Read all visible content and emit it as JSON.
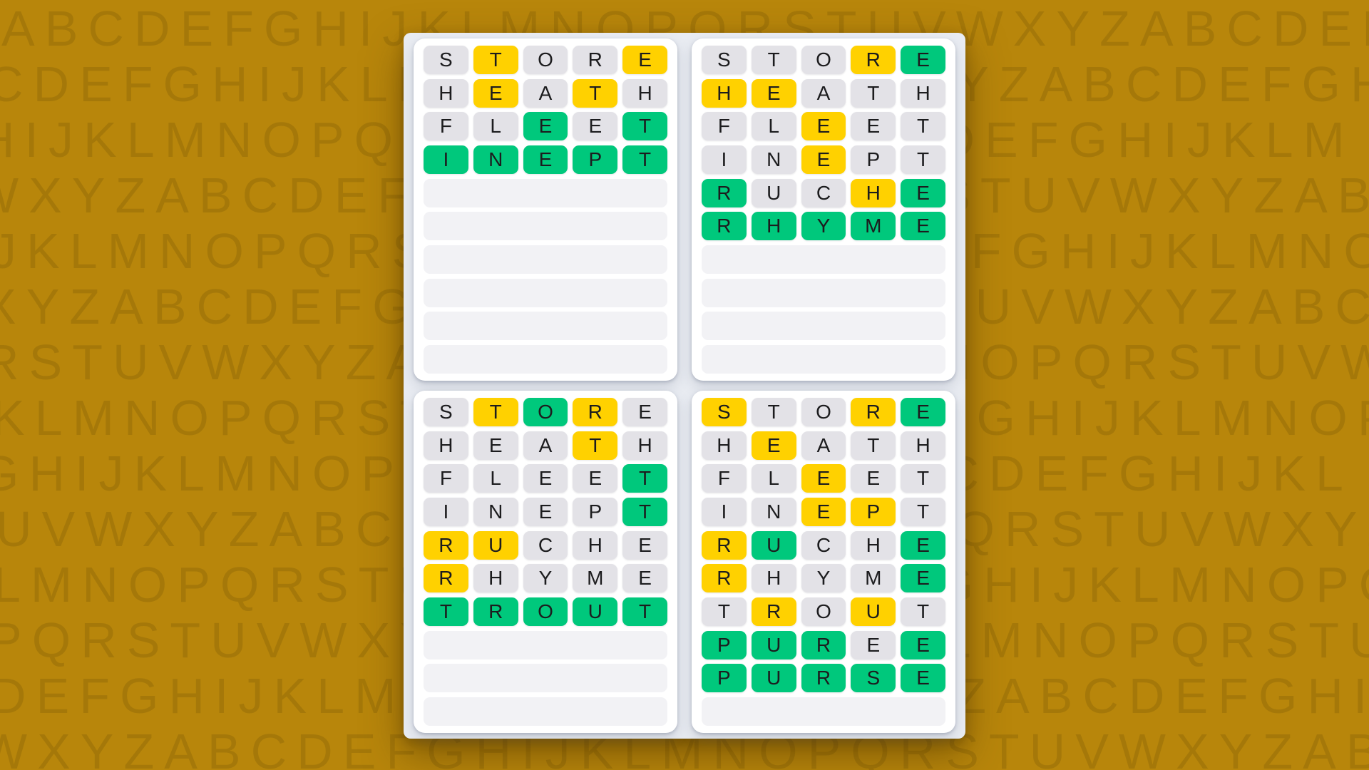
{
  "colors": {
    "page_background": "#B8860B",
    "panel_background": "#E9ECF2",
    "card_background": "#FFFFFF",
    "tile_absent": "#E3E2E7",
    "tile_present": "#FFD100",
    "tile_correct": "#00C87C",
    "empty_row": "#F2F2F5",
    "tile_letter": "#1C1C1E"
  },
  "state_legend": {
    "a": "absent",
    "p": "present",
    "c": "correct"
  },
  "rows_per_board": 10,
  "boards": [
    {
      "position": "top-left",
      "guesses": [
        {
          "word": "STORE",
          "states": "apaap"
        },
        {
          "word": "HEATH",
          "states": "apapa"
        },
        {
          "word": "FLEET",
          "states": "aacac"
        },
        {
          "word": "INEPT",
          "states": "ccccc"
        }
      ]
    },
    {
      "position": "top-right",
      "guesses": [
        {
          "word": "STORE",
          "states": "aaapc"
        },
        {
          "word": "HEATH",
          "states": "ppaaa"
        },
        {
          "word": "FLEET",
          "states": "aapaa"
        },
        {
          "word": "INEPT",
          "states": "aapaa"
        },
        {
          "word": "RUCHE",
          "states": "caapc"
        },
        {
          "word": "RHYME",
          "states": "ccccc"
        }
      ]
    },
    {
      "position": "bottom-left",
      "guesses": [
        {
          "word": "STORE",
          "states": "apcpa"
        },
        {
          "word": "HEATH",
          "states": "aaapa"
        },
        {
          "word": "FLEET",
          "states": "aaaac"
        },
        {
          "word": "INEPT",
          "states": "aaaac"
        },
        {
          "word": "RUCHE",
          "states": "ppaaa"
        },
        {
          "word": "RHYME",
          "states": "paaaa"
        },
        {
          "word": "TROUT",
          "states": "ccccc"
        }
      ]
    },
    {
      "position": "bottom-right",
      "guesses": [
        {
          "word": "STORE",
          "states": "paapc"
        },
        {
          "word": "HEATH",
          "states": "apaaa"
        },
        {
          "word": "FLEET",
          "states": "aapaa"
        },
        {
          "word": "INEPT",
          "states": "aappa"
        },
        {
          "word": "RUCHE",
          "states": "pcaac"
        },
        {
          "word": "RHYME",
          "states": "paaac"
        },
        {
          "word": "TROUT",
          "states": "apapa"
        },
        {
          "word": "PUREE",
          "states": "cccac"
        },
        {
          "word": "PURSE",
          "states": "ccccc"
        }
      ]
    }
  ],
  "background_letters": {
    "rows": [
      "ABCDEFGHIJKLMNOPQRSTUVWXYZABCDEF",
      "CDEFGHIJKLMNOPQRSTUVWXYZABCDEFGH",
      "HIJKLMNOPQRSTUVWXYZABCDEFGHIJKLM",
      "WXYZABCDEFGHIJKLMNOPQRSTUVWXYZAB",
      "JKLMNOPQRSTUVWXYZABCDEFGHIJKLMNO",
      "XYZABCDEFGHIJKLMNOPQRSTUVWXYZABC",
      "RSTUVWXYZABCDEFGHIJKLMNOPQRSTUVW",
      "KLMNOPQRSTUVWXYZABCDEFGHIJKLMNOP",
      "GHIJKLMNOPQRSTUVWXYZABCDEFGHIJKL",
      "UVWXYZABCDEFGHIJKLMNOPQRSTUVWXYZ",
      "LMNOPQRSTUVWXYZABCDEFGHIJKLMNOPQ",
      "PQRSTUVWXYZABCDEFGHIJKLMNOPQRSTU",
      "DEFGHIJKLMNOPQRSTUVWXYZABCDEFGHI",
      "WXYZABCDEFGHIJKLMNOPQRSTUVWXYZAB"
    ],
    "row_offsets": [
      2,
      -18,
      -30,
      -40,
      -12,
      -24,
      -24,
      -12,
      -28,
      -6,
      -10,
      -16,
      -14,
      -28
    ]
  }
}
